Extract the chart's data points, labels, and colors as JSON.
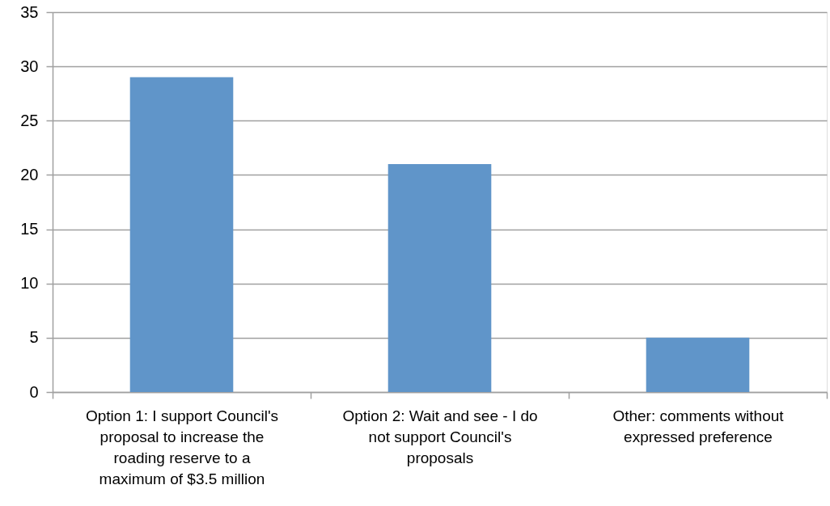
{
  "chart_data": {
    "type": "bar",
    "categories": [
      "Option 1: I support Council's proposal to increase the roading reserve to a maximum of $3.5 million",
      "Option 2: Wait and see - I do not support Council's proposals",
      "Other: comments without expressed preference"
    ],
    "values": [
      29,
      21,
      5
    ],
    "color": "#6095c9",
    "ylim": [
      0,
      35
    ],
    "yticks": [
      0,
      5,
      10,
      15,
      20,
      25,
      30,
      35
    ],
    "grid": "y"
  }
}
